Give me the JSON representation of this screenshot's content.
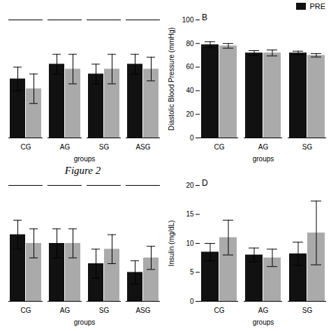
{
  "chart_data": [
    {
      "type": "bar",
      "annotations": [
        "Figure 2"
      ],
      "xlabel": "groups",
      "categories": [
        "CG",
        "AG",
        "SG",
        "ASG"
      ],
      "series": [
        {
          "name": "PRE",
          "color": "#111111",
          "values": [
            84,
            85.5,
            84.5,
            85.5
          ],
          "errors": [
            1.2,
            1.0,
            1.0,
            1.0
          ]
        },
        {
          "color": "#aaaaaa",
          "values": [
            83,
            85,
            85,
            85
          ],
          "errors": [
            1.5,
            1.5,
            1.5,
            1.2
          ]
        }
      ],
      "ylim": [
        78,
        90
      ],
      "tick_labels": "x"
    },
    {
      "type": "bar",
      "annotations": [
        "B"
      ],
      "xlabel": "groups",
      "ylabel": "Diastolic Blood Pressure (mmHg)",
      "categories": [
        "CG",
        "AG",
        "SG"
      ],
      "series": [
        {
          "name": "PRE",
          "color": "#111111",
          "values": [
            79,
            72,
            72
          ],
          "errors": [
            2.5,
            2.0,
            1.5
          ]
        },
        {
          "color": "#aaaaaa",
          "values": [
            78,
            72,
            70
          ],
          "errors": [
            2.0,
            2.5,
            1.5
          ]
        }
      ],
      "ylim": [
        0,
        100
      ],
      "yticks": [
        0,
        20,
        40,
        60,
        80,
        100
      ],
      "legend": "upper right"
    },
    {
      "type": "bar",
      "xlabel": "groups",
      "categories": [
        "CG",
        "AG",
        "SG",
        "ASG"
      ],
      "series": [
        {
          "name": "PRE",
          "color": "#111111",
          "values": [
            13.8,
            13.5,
            12.8,
            12.5
          ],
          "errors": [
            0.5,
            0.5,
            0.5,
            0.4
          ]
        },
        {
          "color": "#aaaaaa",
          "values": [
            13.5,
            13.5,
            13.3,
            13.0
          ],
          "errors": [
            0.5,
            0.5,
            0.5,
            0.4
          ]
        }
      ],
      "ylim": [
        11.5,
        15.5
      ],
      "tick_labels": "x"
    },
    {
      "type": "bar",
      "annotations": [
        "D"
      ],
      "xlabel": "groups",
      "ylabel": "Insulin (mg/dL)",
      "categories": [
        "CG",
        "AG",
        "SG"
      ],
      "series": [
        {
          "name": "PRE",
          "color": "#111111",
          "values": [
            8.5,
            8.0,
            8.2
          ],
          "errors": [
            1.5,
            1.2,
            2.0
          ]
        },
        {
          "color": "#aaaaaa",
          "values": [
            11.0,
            7.5,
            11.8
          ],
          "errors": [
            3.0,
            1.5,
            5.5
          ]
        }
      ],
      "ylim": [
        0,
        20
      ],
      "yticks": [
        0,
        5,
        10,
        15,
        20
      ]
    }
  ]
}
